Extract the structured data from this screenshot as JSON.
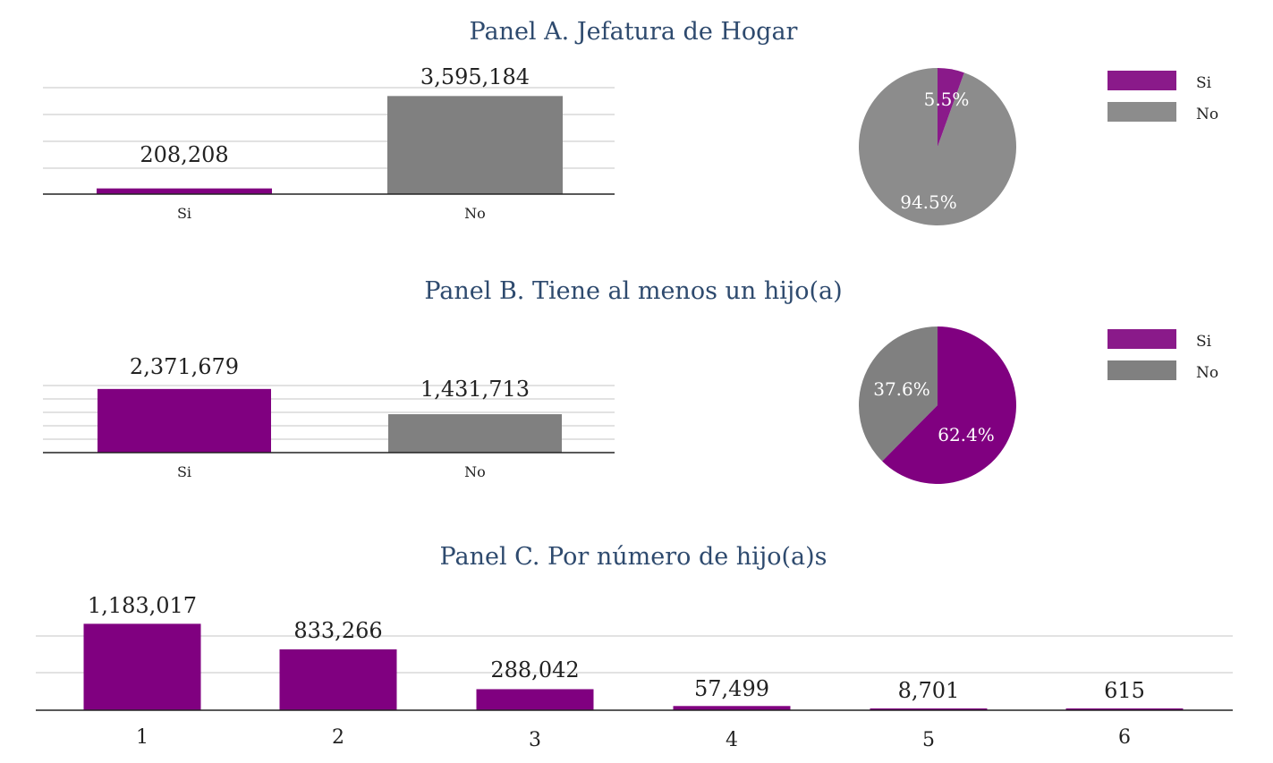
{
  "colors": {
    "si": "#800080",
    "no": "#808080",
    "si_pie": "#8a1a8a",
    "no_pie": "#8c8c8c",
    "title": "#2e4a6e"
  },
  "chart_data": [
    {
      "id": "A",
      "type": "bar",
      "title": "Panel A. Jefatura de Hogar",
      "categories": [
        "Si",
        "No"
      ],
      "values": [
        208208,
        3595184
      ],
      "value_labels": [
        "208,208",
        "3,595,184"
      ],
      "ylim": [
        0,
        4000000
      ],
      "grid": true
    },
    {
      "id": "A-pie",
      "type": "pie",
      "labels": [
        "Si",
        "No"
      ],
      "values": [
        5.5,
        94.5
      ],
      "pct_labels": [
        "5.5%",
        "94.5%"
      ],
      "legend": [
        "Si",
        "No"
      ],
      "legend_position": "right"
    },
    {
      "id": "B",
      "type": "bar",
      "title": "Panel B. Tiene al menos un hijo(a)",
      "categories": [
        "Si",
        "No"
      ],
      "values": [
        2371679,
        1431713
      ],
      "value_labels": [
        "2,371,679",
        "1,431,713"
      ],
      "ylim": [
        0,
        2500000
      ],
      "grid": true
    },
    {
      "id": "B-pie",
      "type": "pie",
      "labels": [
        "Si",
        "No"
      ],
      "values": [
        62.4,
        37.6
      ],
      "pct_labels": [
        "62.4%",
        "37.6%"
      ],
      "legend": [
        "Si",
        "No"
      ],
      "legend_position": "right"
    },
    {
      "id": "C",
      "type": "bar",
      "title": "Panel C. Por número de hijo(a)s",
      "categories": [
        "1",
        "2",
        "3",
        "4",
        "5",
        "6"
      ],
      "values": [
        1183017,
        833266,
        288042,
        57499,
        8701,
        615
      ],
      "value_labels": [
        "1,183,017",
        "833,266",
        "288,042",
        "57,499",
        "8,701",
        "615"
      ],
      "ylim": [
        0,
        1200000
      ],
      "grid": true
    }
  ]
}
